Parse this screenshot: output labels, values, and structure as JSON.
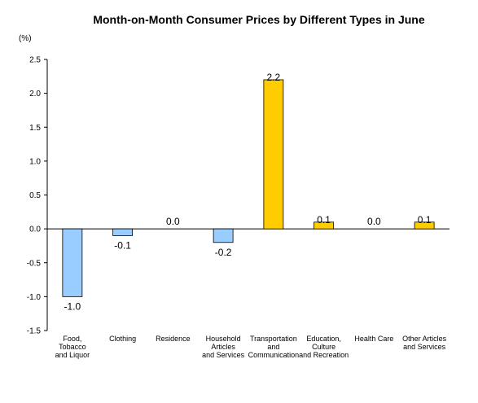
{
  "chart_data": {
    "type": "bar",
    "title": "Month-on-Month Consumer Prices by Different Types in June",
    "unit_label": "(%)",
    "ylim": [
      -1.5,
      2.5
    ],
    "yticks": [
      "2.5",
      "2.0",
      "1.5",
      "1.0",
      "0.5",
      "0.0",
      "-0.5",
      "-1.0",
      "-1.5"
    ],
    "ytick_values": [
      2.5,
      2.0,
      1.5,
      1.0,
      0.5,
      0.0,
      -0.5,
      -1.0,
      -1.5
    ],
    "grid": false,
    "categories": [
      [
        "Food,",
        "Tobacco",
        "and Liquor"
      ],
      [
        "Clothing"
      ],
      [
        "Residence"
      ],
      [
        "Household",
        "Articles",
        "and Services"
      ],
      [
        "Transportation",
        "and",
        "Communication"
      ],
      [
        "Education,",
        "Culture",
        "and Recreation"
      ],
      [
        "Health Care"
      ],
      [
        "Other Articles",
        "and Services"
      ]
    ],
    "values": [
      -1.0,
      -0.1,
      0.0,
      -0.2,
      2.2,
      0.1,
      0.0,
      0.1
    ],
    "value_labels": [
      "-1.0",
      "-0.1",
      "0.0",
      "-0.2",
      "2.2",
      "0.1",
      "0.0",
      "0.1"
    ],
    "colors": {
      "negative": "#99ccff",
      "positive": "#ffcc00",
      "bar_stroke": "#000000",
      "axis": "#000000"
    }
  }
}
